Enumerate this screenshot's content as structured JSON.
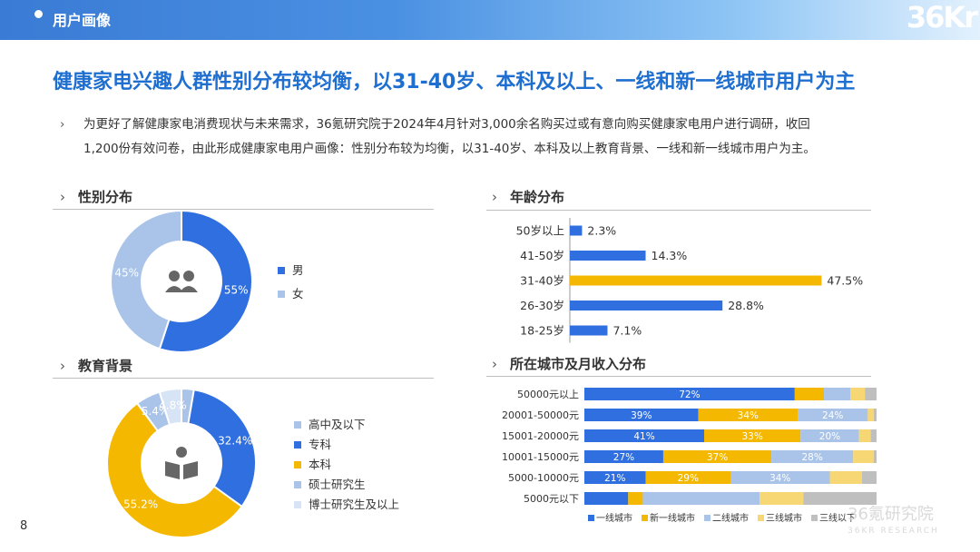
{
  "header": {
    "title": "用户画像",
    "logo": "36Kr"
  },
  "headline": "健康家电兴趣人群性别分布较均衡，以31-40岁、本科及以上、一线和新一线城市用户为主",
  "intro": {
    "line1": "为更好了解健康家电消费现状与未来需求，36氪研究院于2024年4月针对3,000余名购买过或有意向购买健康家电用户进行调研，收回",
    "line2": "1,200份有效问卷，由此形成健康家电用户画像：性别分布较为均衡，以31-40岁、本科及以上教育背景、一线和新一线城市用户为主。"
  },
  "sections": {
    "gender": "性别分布",
    "age": "年龄分布",
    "education": "教育背景",
    "city": "所在城市及月收入分布"
  },
  "page_number": "8",
  "watermark": {
    "main": "36氪研究院",
    "sub": "36KR RESEARCH"
  },
  "chart_data": [
    {
      "type": "pie",
      "chart": "gender",
      "categories": [
        "男",
        "女"
      ],
      "values": [
        55,
        45
      ],
      "labels": [
        "55%",
        "45%"
      ],
      "colors": [
        "#2f6fe0",
        "#a9c4e8"
      ],
      "legend": "right"
    },
    {
      "type": "bar",
      "chart": "age",
      "orientation": "horizontal",
      "categories": [
        "50岁以上",
        "41-50岁",
        "31-40岁",
        "26-30岁",
        "18-25岁"
      ],
      "values": [
        2.3,
        14.3,
        47.5,
        28.8,
        7.1
      ],
      "labels": [
        "2.3%",
        "14.3%",
        "47.5%",
        "28.8%",
        "7.1%"
      ],
      "colors": [
        "#2f6fe0",
        "#2f6fe0",
        "#f5b800",
        "#2f6fe0",
        "#2f6fe0"
      ],
      "xlim": [
        0,
        50
      ]
    },
    {
      "type": "pie",
      "chart": "education",
      "categories": [
        "高中及以下",
        "专科",
        "本科",
        "硕士研究生",
        "博士研究生及以上"
      ],
      "values": [
        2.7,
        32.4,
        55.2,
        5.4,
        4.8
      ],
      "labels": [
        "",
        "32.4%",
        "55.2%",
        "5.4%",
        "4.8%"
      ],
      "colors": [
        "#a9c4e8",
        "#2f6fe0",
        "#f5b800",
        "#a9c4e8",
        "#d6e4f5"
      ],
      "legend": "right"
    },
    {
      "type": "bar",
      "chart": "city_income",
      "orientation": "horizontal",
      "stacked": true,
      "categories": [
        "50000元以上",
        "20001-50000元",
        "15001-20000元",
        "10001-15000元",
        "5000-10000元",
        "5000元以下"
      ],
      "series": [
        {
          "name": "一线城市",
          "color": "#2f6fe0",
          "values": [
            72,
            39,
            41,
            27,
            21,
            15
          ],
          "labels": [
            "72%",
            "39%",
            "41%",
            "27%",
            "21%",
            ""
          ]
        },
        {
          "name": "新一线城市",
          "color": "#f5b800",
          "values": [
            10,
            34,
            33,
            37,
            29,
            5
          ],
          "labels": [
            "",
            "34%",
            "33%",
            "37%",
            "29%",
            ""
          ]
        },
        {
          "name": "二线城市",
          "color": "#a9c4e8",
          "values": [
            9,
            24,
            20,
            28,
            34,
            40
          ],
          "labels": [
            "",
            "24%",
            "20%",
            "28%",
            "34%",
            ""
          ]
        },
        {
          "name": "三线城市",
          "color": "#f7d774",
          "values": [
            5,
            2,
            4,
            7,
            11,
            15
          ],
          "labels": [
            "",
            "",
            "",
            "",
            "",
            ""
          ]
        },
        {
          "name": "三线以下",
          "color": "#bfbfbf",
          "values": [
            4,
            1,
            2,
            1,
            5,
            25
          ],
          "labels": [
            "",
            "",
            "",
            "",
            "",
            ""
          ]
        }
      ],
      "legend": "bottom"
    }
  ]
}
